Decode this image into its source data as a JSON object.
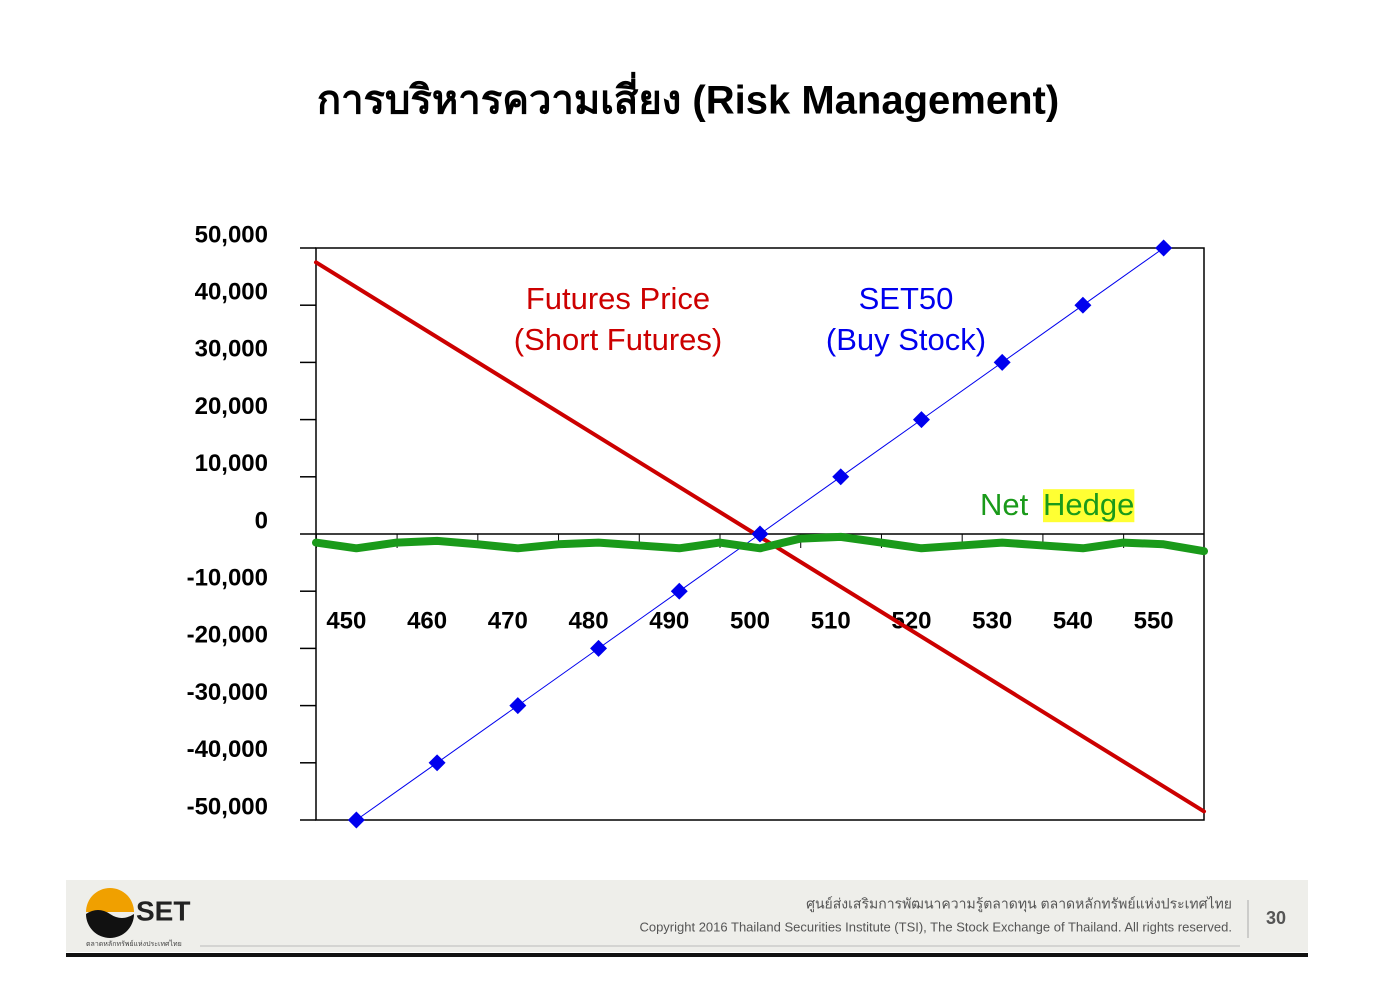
{
  "title": "การบริหารความเสี่ยง (Risk Management)",
  "chart_data": {
    "type": "line",
    "xlim": [
      445,
      555
    ],
    "xticks": [
      450,
      460,
      470,
      480,
      490,
      500,
      510,
      520,
      530,
      540,
      550
    ],
    "ylim": [
      -50000,
      50000
    ],
    "yticks": [
      {
        "value": -50000,
        "label": "-50,000"
      },
      {
        "value": -40000,
        "label": "-40,000"
      },
      {
        "value": -30000,
        "label": "-30,000"
      },
      {
        "value": -20000,
        "label": "-20,000"
      },
      {
        "value": -10000,
        "label": "-10,000"
      },
      0,
      {
        "value": 10000,
        "label": "10,000"
      },
      {
        "value": 20000,
        "label": "20,000"
      },
      {
        "value": 30000,
        "label": "30,000"
      },
      {
        "value": 40000,
        "label": "40,000"
      },
      {
        "value": 50000,
        "label": "50,000"
      }
    ],
    "series": [
      {
        "color": "#cc0000",
        "width": 4,
        "marker": false,
        "x": [
          445,
          555
        ],
        "values": [
          47500,
          -48500
        ]
      },
      {
        "color": "#0000ee",
        "width": 1,
        "marker": true,
        "x": [
          450,
          460,
          470,
          480,
          490,
          500,
          510,
          520,
          530,
          540,
          550
        ],
        "values": [
          -50000,
          -40000,
          -30000,
          -20000,
          -10000,
          0,
          10000,
          20000,
          30000,
          40000,
          50000
        ]
      },
      {
        "color": "#1a9a1a",
        "width": 8,
        "marker": false,
        "x": [
          445,
          450,
          455,
          460,
          465,
          470,
          475,
          480,
          485,
          490,
          495,
          500,
          505,
          510,
          515,
          520,
          525,
          530,
          535,
          540,
          545,
          550,
          555
        ],
        "values": [
          -1500,
          -2500,
          -1500,
          -1200,
          -1800,
          -2500,
          -1800,
          -1500,
          -2000,
          -2500,
          -1500,
          -2500,
          -800,
          -500,
          -1500,
          -2500,
          -2000,
          -1500,
          -2000,
          -2500,
          -1500,
          -1800,
          -3000
        ]
      }
    ],
    "annotations": [
      {
        "text": "Futures Price",
        "color": "#cc0000"
      },
      {
        "text": "(Short Futures)",
        "color": "#cc0000"
      },
      {
        "text": "SET50",
        "color": "#0000ee"
      },
      {
        "text": "(Buy Stock)",
        "color": "#0000ee"
      },
      {
        "text": "Net",
        "color": "#1a9a1a"
      },
      {
        "text": "Hedge",
        "color": "#1a9a1a",
        "highlight": "#ffff33"
      }
    ]
  },
  "footer": {
    "logo": "SET",
    "logo_sub": "ตลาดหลักทรัพย์แห่งประเทศไทย",
    "line1": "ศูนย์ส่งเสริมการพัฒนาความรู้ตลาดทุน ตลาดหลักทรัพย์แห่งประเทศไทย",
    "line2": "Copyright 2016 Thailand Securities Institute (TSI), The Stock Exchange of Thailand. All rights reserved.",
    "page": "30"
  }
}
